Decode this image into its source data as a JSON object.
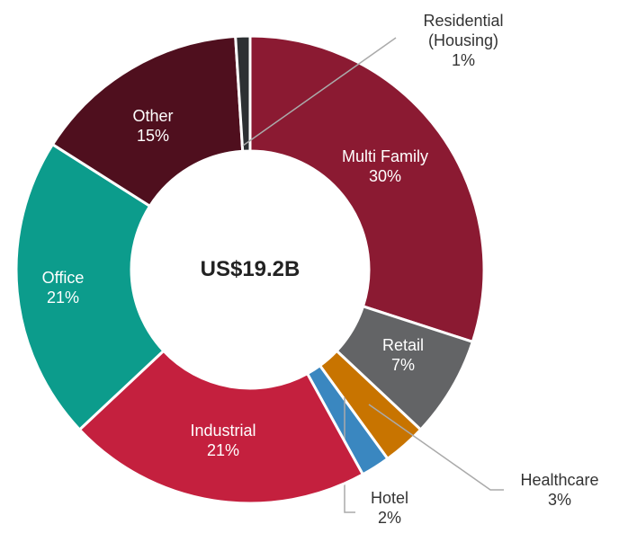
{
  "chart_data": {
    "type": "donut",
    "center_label": "US$19.2B",
    "categories": [
      "Multi Family",
      "Retail",
      "Healthcare",
      "Hotel",
      "Industrial",
      "Office",
      "Other",
      "Residential (Housing)"
    ],
    "values": [
      30,
      7,
      3,
      2,
      21,
      21,
      15,
      1
    ],
    "value_labels": [
      "30%",
      "7%",
      "3%",
      "2%",
      "21%",
      "21%",
      "15%",
      "1%"
    ],
    "colors": [
      "#8b1a32",
      "#636466",
      "#c87400",
      "#3a87c0",
      "#c4203e",
      "#0c9c8c",
      "#4f0f1e",
      "#2d3033"
    ]
  }
}
